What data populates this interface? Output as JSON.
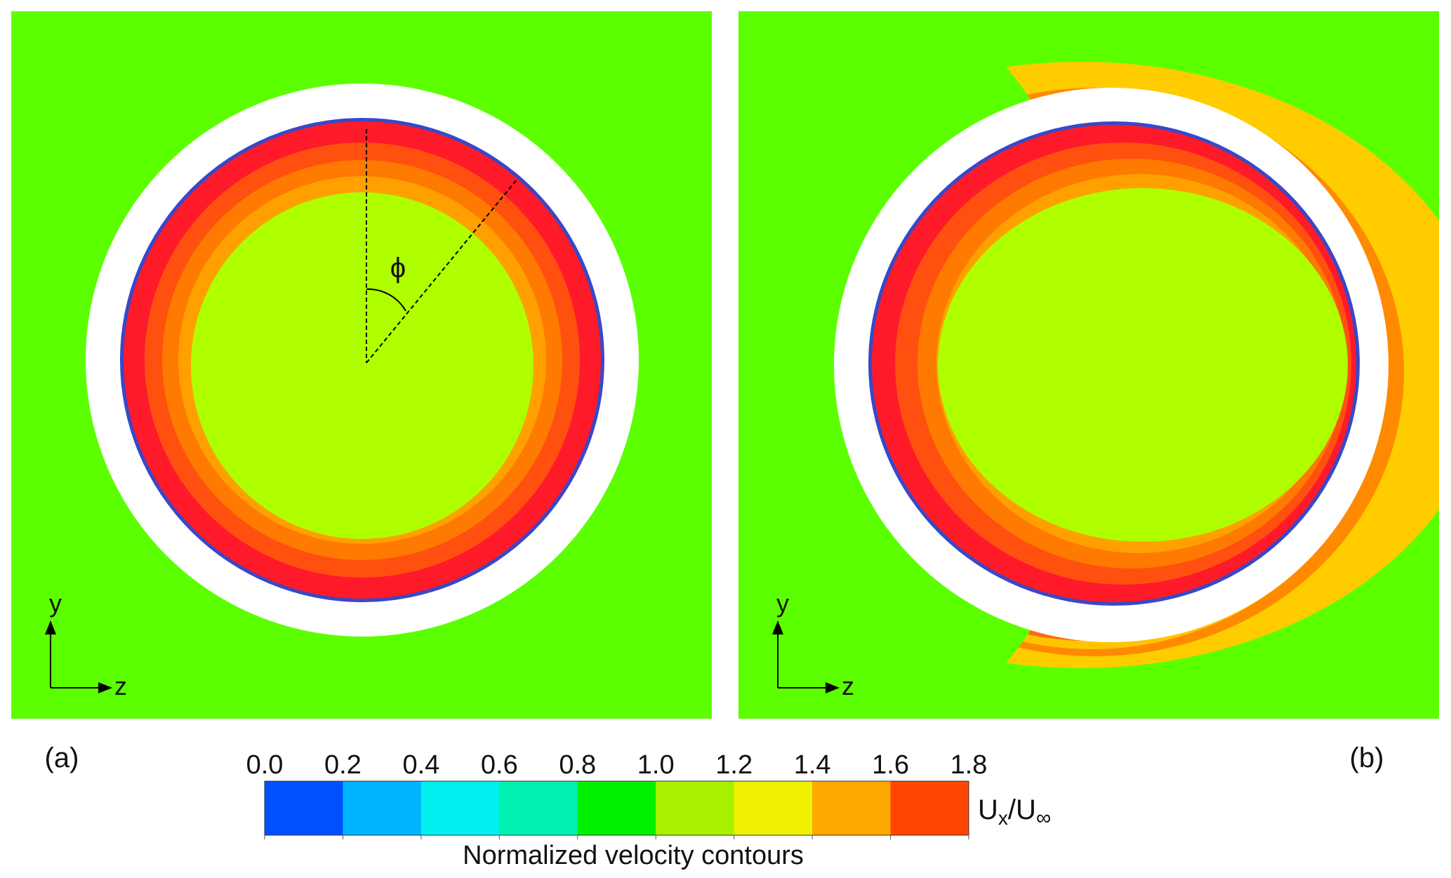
{
  "figure": {
    "panel_a": {
      "label": "(a)",
      "angle_symbol": "ϕ",
      "axes": {
        "y": "y",
        "z": "z"
      }
    },
    "panel_b": {
      "label": "(b)",
      "axes": {
        "y": "y",
        "z": "z"
      }
    },
    "colorbar": {
      "ticks": [
        "0.0",
        "0.2",
        "0.4",
        "0.6",
        "0.8",
        "1.0",
        "1.2",
        "1.4",
        "1.6",
        "1.8"
      ],
      "bin_colors": [
        "#0050ff",
        "#00b4ff",
        "#00f0f0",
        "#00f0b0",
        "#00f000",
        "#a8f000",
        "#f0f000",
        "#ffa800",
        "#ff4500"
      ],
      "quantity_label": {
        "main": "U",
        "sub_x": "x",
        "slash": "/U",
        "sub_inf": "∞"
      },
      "title": "Normalized velocity contours"
    },
    "colors": {
      "background_field": "#5cff00",
      "wall_white": "#ffffff",
      "inner_core": "#b0ff00",
      "ring_orange": "#ffa000",
      "ring_red_orange": "#ff5a10",
      "ring_red": "#ff1a2a",
      "ring_edge_blue": "#3040c0",
      "wake_yellow": "#ffcc00"
    }
  }
}
